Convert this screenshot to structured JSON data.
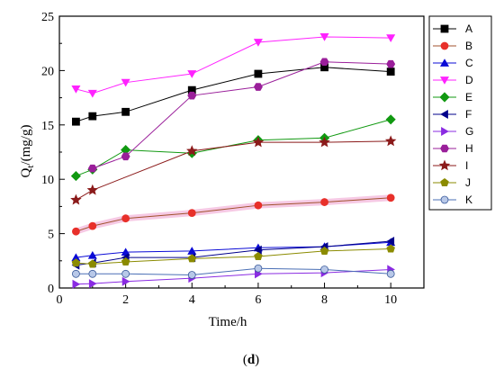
{
  "caption": {
    "open": "(",
    "letter": "d",
    "close": ")"
  },
  "chart_data": {
    "type": "line",
    "xlabel": "Time/h",
    "ylabel": "Q",
    "ylabel_subscript": "t",
    "ylabel_unit": "/(mg/g)",
    "xlim": [
      0,
      11
    ],
    "ylim": [
      0,
      25
    ],
    "xticks": [
      0,
      2,
      4,
      6,
      8,
      10
    ],
    "yticks": [
      0,
      5,
      10,
      15,
      20,
      25
    ],
    "grid": false,
    "legend_position": "right",
    "series": [
      {
        "name": "A",
        "color": "#000000",
        "marker": "square",
        "x": [
          0.5,
          1,
          2,
          4,
          6,
          8,
          10
        ],
        "y": [
          15.3,
          15.8,
          16.2,
          18.2,
          19.7,
          20.3,
          19.9
        ]
      },
      {
        "name": "B",
        "color": "#a0522d",
        "marker": "circle-filled",
        "markerColor": "#e8302a",
        "band": "#f6c9e4",
        "x": [
          0.5,
          1,
          2,
          4,
          6,
          8,
          10
        ],
        "y": [
          5.2,
          5.7,
          6.4,
          6.9,
          7.6,
          7.9,
          8.3
        ]
      },
      {
        "name": "C",
        "color": "#0b0bd6",
        "marker": "triangle-up",
        "x": [
          0.5,
          1,
          2,
          4,
          6,
          8,
          10
        ],
        "y": [
          2.8,
          3.0,
          3.3,
          3.4,
          3.7,
          3.8,
          4.2
        ]
      },
      {
        "name": "D",
        "color": "#ff22ff",
        "marker": "triangle-down",
        "x": [
          0.5,
          1,
          2,
          4,
          6,
          8,
          10
        ],
        "y": [
          18.3,
          17.9,
          18.9,
          19.7,
          22.6,
          23.1,
          23.0
        ]
      },
      {
        "name": "E",
        "color": "#119911",
        "marker": "diamond",
        "x": [
          0.5,
          1,
          2,
          4,
          6,
          8,
          10
        ],
        "y": [
          10.3,
          10.9,
          12.7,
          12.4,
          13.6,
          13.8,
          15.5
        ]
      },
      {
        "name": "F",
        "color": "#00008b",
        "marker": "triangle-left",
        "x": [
          0.5,
          1,
          2,
          4,
          6,
          8,
          10
        ],
        "y": [
          2.1,
          2.3,
          2.8,
          2.8,
          3.5,
          3.8,
          4.3
        ]
      },
      {
        "name": "G",
        "color": "#8a2be2",
        "marker": "triangle-right",
        "x": [
          0.5,
          1,
          2,
          4,
          6,
          8,
          10
        ],
        "y": [
          0.35,
          0.4,
          0.6,
          0.9,
          1.3,
          1.4,
          1.7
        ]
      },
      {
        "name": "H",
        "color": "#9a1f9a",
        "marker": "hexagon",
        "x": [
          1,
          2,
          4,
          6,
          8,
          10
        ],
        "y": [
          11.0,
          12.1,
          17.7,
          18.5,
          20.8,
          20.6
        ]
      },
      {
        "name": "I",
        "color": "#8b1a1a",
        "marker": "star",
        "x": [
          0.5,
          1,
          4,
          6,
          8,
          10
        ],
        "y": [
          8.1,
          9.0,
          12.6,
          13.4,
          13.4,
          13.5
        ]
      },
      {
        "name": "J",
        "color": "#8b8b00",
        "marker": "pentagon",
        "x": [
          0.5,
          1,
          2,
          4,
          6,
          8,
          10
        ],
        "y": [
          2.3,
          2.2,
          2.4,
          2.7,
          2.9,
          3.4,
          3.6
        ]
      },
      {
        "name": "K",
        "color": "#4a6fb5",
        "marker": "circle-shaded",
        "x": [
          0.5,
          1,
          2,
          4,
          6,
          8,
          10
        ],
        "y": [
          1.3,
          1.3,
          1.3,
          1.2,
          1.8,
          1.7,
          1.3
        ]
      }
    ]
  }
}
